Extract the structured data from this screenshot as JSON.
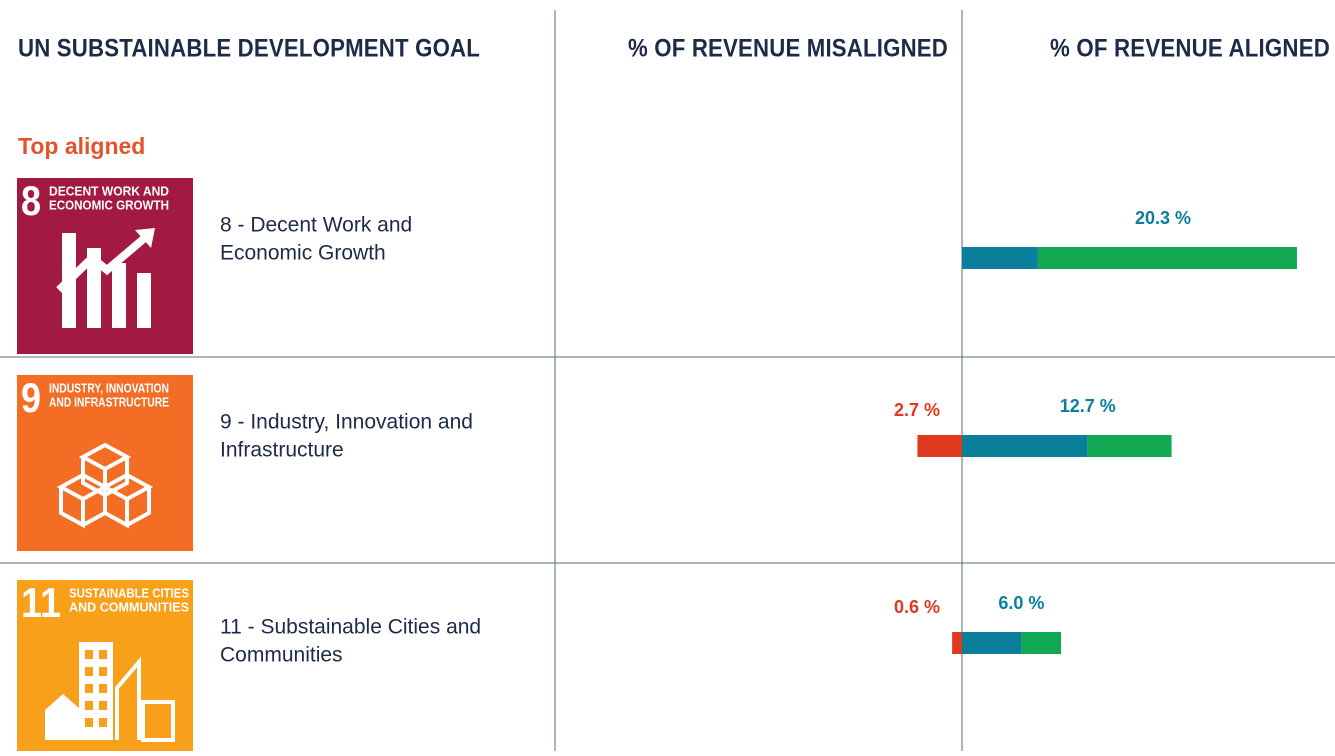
{
  "header": {
    "columns": [
      "UN SUBSTAINABLE DEVELOPMENT GOAL",
      "% OF REVENUE MISALIGNED",
      "% OF REVENUE ALIGNED"
    ]
  },
  "section": "Top aligned",
  "colors": {
    "misaligned": "#e03a1e",
    "aligned_segments": [
      "#0b7f9a",
      "#11a854"
    ],
    "tiles": [
      "#a21942",
      "#f36d25",
      "#f9a01b"
    ]
  },
  "rows": [
    {
      "icon_number": "8",
      "icon_title": [
        "DECENT WORK AND",
        "ECONOMIC GROWTH"
      ],
      "label": [
        "8 - Decent Work and",
        "Economic Growth"
      ],
      "aligned": {
        "value": 20.3,
        "label": "20.3 %",
        "segments": [
          4.6,
          15.7
        ]
      }
    },
    {
      "icon_number": "9",
      "icon_title": [
        "INDUSTRY, INNOVATION",
        "AND INFRASTRUCTURE"
      ],
      "label": [
        "9 - Industry, Innovation and",
        "Infrastructure"
      ],
      "misaligned": {
        "value": 2.7,
        "label": "2.7 %"
      },
      "aligned": {
        "value": 12.7,
        "label": "12.7 %",
        "segments": [
          7.6,
          5.1
        ]
      }
    },
    {
      "icon_number": "11",
      "icon_title": [
        "SUSTAINABLE CITIES",
        "AND COMMUNITIES"
      ],
      "label": [
        "11 - Substainable Cities and",
        "Communities"
      ],
      "misaligned": {
        "value": 0.6,
        "label": "0.6 %"
      },
      "aligned": {
        "value": 6.0,
        "label": "6.0 %",
        "segments": [
          3.6,
          2.4
        ]
      }
    }
  ]
}
